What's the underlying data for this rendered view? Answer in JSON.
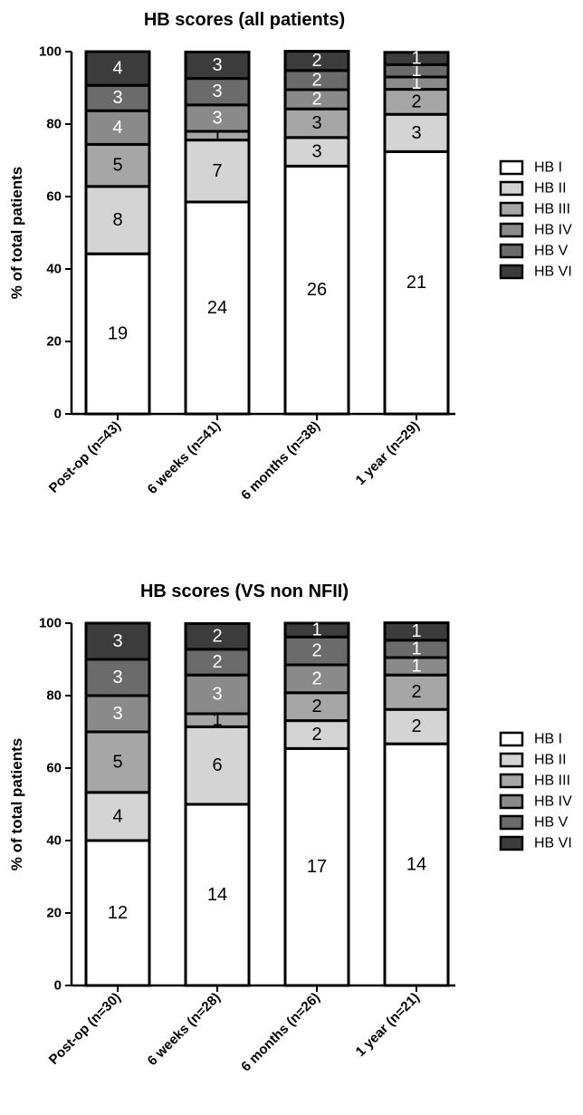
{
  "chart_data": [
    {
      "type": "bar",
      "stacked": true,
      "title": "HB scores (all patients)",
      "xlabel": "",
      "ylabel": "% of total patients",
      "ylim": [
        0,
        100
      ],
      "yticks": [
        0,
        20,
        40,
        60,
        80,
        100
      ],
      "categories": [
        "Post-op (n=43)",
        "6 weeks (n=41)",
        "6 months (n=38)",
        "1 year (n=29)"
      ],
      "series": [
        {
          "name": "HB I",
          "color": "#ffffff",
          "values": [
            19,
            24,
            26,
            21
          ],
          "percent": [
            44.2,
            58.5,
            68.4,
            72.4
          ]
        },
        {
          "name": "HB II",
          "color": "#d4d4d4",
          "values": [
            8,
            7,
            3,
            3
          ],
          "percent": [
            18.6,
            17.1,
            7.9,
            10.3
          ]
        },
        {
          "name": "HB III",
          "color": "#a6a6a6",
          "values": [
            5,
            1,
            3,
            2
          ],
          "percent": [
            11.6,
            2.4,
            7.9,
            6.9
          ]
        },
        {
          "name": "HB IV",
          "color": "#8a8a8a",
          "values": [
            4,
            3,
            2,
            1
          ],
          "percent": [
            9.3,
            7.3,
            5.3,
            3.4
          ]
        },
        {
          "name": "HB V",
          "color": "#6b6b6b",
          "values": [
            3,
            3,
            2,
            1
          ],
          "percent": [
            7.0,
            7.3,
            5.3,
            3.4
          ]
        },
        {
          "name": "HB VI",
          "color": "#3c3c3c",
          "values": [
            4,
            3,
            2,
            1
          ],
          "percent": [
            9.3,
            7.3,
            5.3,
            3.4
          ]
        }
      ],
      "legend": "right"
    },
    {
      "type": "bar",
      "stacked": true,
      "title": "HB scores (VS non NFII)",
      "xlabel": "",
      "ylabel": "% of total patients",
      "ylim": [
        0,
        100
      ],
      "yticks": [
        0,
        20,
        40,
        60,
        80,
        100
      ],
      "categories": [
        "Post-op (n=30)",
        "6 weeks (n=28)",
        "6 months (n=26)",
        "1 year (n=21)"
      ],
      "series": [
        {
          "name": "HB I",
          "color": "#ffffff",
          "values": [
            12,
            14,
            17,
            14
          ],
          "percent": [
            40.0,
            50.0,
            65.4,
            66.7
          ]
        },
        {
          "name": "HB II",
          "color": "#d4d4d4",
          "values": [
            4,
            6,
            2,
            2
          ],
          "percent": [
            13.3,
            21.4,
            7.7,
            9.5
          ]
        },
        {
          "name": "HB III",
          "color": "#a6a6a6",
          "values": [
            5,
            1,
            2,
            2
          ],
          "percent": [
            16.7,
            3.6,
            7.7,
            9.5
          ]
        },
        {
          "name": "HB IV",
          "color": "#8a8a8a",
          "values": [
            3,
            3,
            2,
            1
          ],
          "percent": [
            10.0,
            10.7,
            7.7,
            4.8
          ]
        },
        {
          "name": "HB V",
          "color": "#6b6b6b",
          "values": [
            3,
            2,
            2,
            1
          ],
          "percent": [
            10.0,
            7.1,
            7.7,
            4.8
          ]
        },
        {
          "name": "HB VI",
          "color": "#3c3c3c",
          "values": [
            3,
            2,
            1,
            1
          ],
          "percent": [
            10.0,
            7.1,
            3.8,
            4.8
          ]
        }
      ],
      "legend": "right"
    }
  ]
}
